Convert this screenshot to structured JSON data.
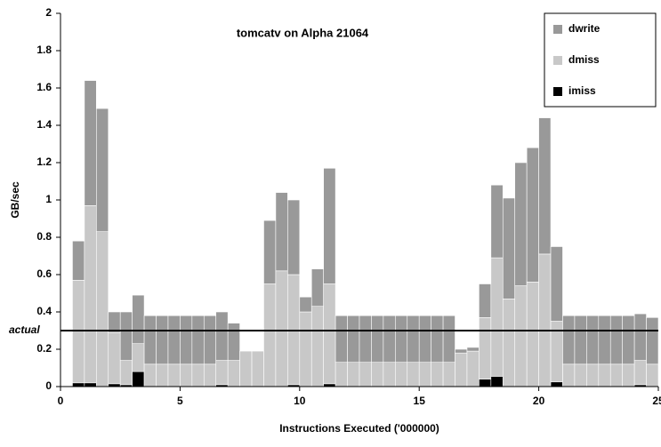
{
  "chart_data": {
    "type": "stacked_bar",
    "title": "tomcatv on Alpha 21064",
    "x_label": "Instructions Executed ('000000)",
    "y_label": "GB/sec",
    "x": [
      0.75,
      1.25,
      1.75,
      2.25,
      2.75,
      3.25,
      3.75,
      4.25,
      4.75,
      5.25,
      5.75,
      6.25,
      6.75,
      7.25,
      7.75,
      8.25,
      8.75,
      9.25,
      9.75,
      10.25,
      10.75,
      11.25,
      11.75,
      12.25,
      12.75,
      13.25,
      13.75,
      14.25,
      14.75,
      15.25,
      15.75,
      16.25,
      16.75,
      17.25,
      17.75,
      18.25,
      18.75,
      19.25,
      19.75,
      20.25,
      20.75,
      21.25,
      21.75,
      22.25,
      22.75,
      23.25,
      23.75,
      24.25,
      24.75
    ],
    "bar_width": 0.5,
    "series": [
      {
        "name": "imiss",
        "color": "#000000",
        "values": [
          0.02,
          0.02,
          0,
          0.015,
          0.01,
          0.08,
          0,
          0,
          0,
          0,
          0,
          0,
          0.01,
          0,
          0,
          0,
          0,
          0,
          0.01,
          0,
          0,
          0.015,
          0,
          0,
          0,
          0,
          0,
          0,
          0,
          0,
          0,
          0,
          0,
          0,
          0.04,
          0.055,
          0,
          0,
          0,
          0,
          0.025,
          0,
          0,
          0,
          0,
          0,
          0,
          0.01,
          0
        ]
      },
      {
        "name": "dmiss",
        "color": "#c8c8c8",
        "values": [
          0.55,
          0.95,
          0.83,
          0.275,
          0.13,
          0.15,
          0.12,
          0.12,
          0.12,
          0.12,
          0.12,
          0.12,
          0.13,
          0.14,
          0.19,
          0.19,
          0.55,
          0.62,
          0.59,
          0.4,
          0.43,
          0.535,
          0.13,
          0.13,
          0.13,
          0.13,
          0.13,
          0.13,
          0.13,
          0.13,
          0.13,
          0.13,
          0.18,
          0.19,
          0.33,
          0.635,
          0.47,
          0.54,
          0.56,
          0.71,
          0.325,
          0.12,
          0.12,
          0.12,
          0.12,
          0.12,
          0.12,
          0.13,
          0.12
        ]
      },
      {
        "name": "dwrite",
        "color": "#999999",
        "values": [
          0.21,
          0.67,
          0.66,
          0.11,
          0.26,
          0.26,
          0.26,
          0.26,
          0.26,
          0.26,
          0.26,
          0.26,
          0.26,
          0.2,
          0,
          0,
          0.34,
          0.42,
          0.4,
          0.08,
          0.2,
          0.62,
          0.25,
          0.25,
          0.25,
          0.25,
          0.25,
          0.25,
          0.25,
          0.25,
          0.25,
          0.25,
          0.02,
          0.02,
          0.18,
          0.39,
          0.54,
          0.66,
          0.72,
          0.73,
          0.4,
          0.26,
          0.26,
          0.26,
          0.26,
          0.26,
          0.26,
          0.25,
          0.25
        ]
      }
    ],
    "reference_line": {
      "label": "actual",
      "value": 0.3
    },
    "xlim": [
      0,
      25
    ],
    "xticks": [
      0,
      5,
      10,
      15,
      20,
      25
    ],
    "ylim": [
      0,
      2
    ],
    "yticks": [
      0,
      0.2,
      0.4,
      0.6,
      0.8,
      1,
      1.2,
      1.4,
      1.6,
      1.8,
      2
    ],
    "grid": false,
    "legend": "top-right"
  }
}
